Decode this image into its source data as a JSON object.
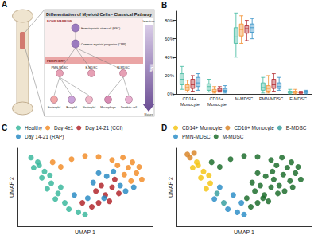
{
  "diagram": {
    "panel_label": "A",
    "title": "Differentiation of Myeloid Cells - Classical Pathway",
    "regions": [
      "BONE MARROW",
      "PERIPHERY"
    ],
    "time": [
      "Immature",
      "TIME",
      "Mature"
    ],
    "progenitors": [
      "Hematopoietic stem cell (HSC)",
      "Common myeloid progenitor (CMP)"
    ],
    "mdsc": [
      "PMN-MDSC",
      "E-MDSC",
      "M-MDSC"
    ],
    "mature": [
      "Eosinophil",
      "Basophil",
      "Neutrophil",
      "Macrophage",
      "Dendritic cell"
    ]
  },
  "chart_data": [
    {
      "type": "boxplot",
      "panel_label": "B",
      "categories": [
        "CD14+ Monocyte",
        "CD16+ Monocyte",
        "M-MDSC",
        "PMN-MDSC",
        "E-MDSC"
      ],
      "ylim": [
        0,
        90
      ],
      "yticks": [
        {
          "value": 0,
          "label": "0%"
        },
        {
          "value": 20,
          "label": "20%"
        },
        {
          "value": 40,
          "label": "40%"
        },
        {
          "value": 60,
          "label": "60%"
        },
        {
          "value": 80,
          "label": "80%"
        }
      ],
      "grid": false,
      "series": [
        {
          "color": "#3cb89d",
          "values": [
            [
              5,
              10,
              16,
              22,
              30
            ],
            [
              2,
              4,
              8,
              11,
              16
            ],
            [
              40,
              55,
              62,
              72,
              88
            ],
            [
              1,
              4,
              7,
              12,
              18
            ],
            [
              0,
              1,
              2,
              3,
              5
            ]
          ]
        },
        {
          "color": "#f28e2b",
          "values": [
            [
              2,
              4,
              7,
              10,
              15
            ],
            [
              1,
              2,
              3,
              5,
              8
            ],
            [
              55,
              63,
              70,
              76,
              85
            ],
            [
              1,
              3,
              6,
              9,
              20
            ],
            [
              0,
              1,
              2,
              3,
              5
            ]
          ]
        },
        {
          "color": "#b2272d",
          "values": [
            [
              3,
              6,
              10,
              16,
              20
            ],
            [
              2,
              3,
              4,
              6,
              8
            ],
            [
              58,
              66,
              71,
              74,
              80
            ],
            [
              3,
              6,
              10,
              16,
              22
            ],
            [
              0,
              1,
              1,
              2,
              3
            ]
          ]
        },
        {
          "color": "#2b8cc4",
          "values": [
            [
              4,
              8,
              12,
              18,
              22
            ],
            [
              1,
              3,
              4,
              6,
              9
            ],
            [
              60,
              67,
              72,
              76,
              82
            ],
            [
              4,
              6,
              8,
              12,
              18
            ],
            [
              0,
              1,
              2,
              3,
              4
            ]
          ]
        }
      ]
    },
    {
      "type": "scatter",
      "panel_label": "C",
      "xlabel": "UMAP 1",
      "ylabel": "UMAP 2",
      "xlim": [
        0,
        10
      ],
      "ylim": [
        0,
        10
      ],
      "tick_labels": false,
      "grid": false,
      "legend": "top",
      "series": [
        {
          "name": "Healthy",
          "color": "#3cb89d",
          "points": [
            [
              1,
              8.8
            ],
            [
              1.5,
              8.2
            ],
            [
              1.2,
              7.5
            ],
            [
              2,
              7
            ],
            [
              1.8,
              6.2
            ],
            [
              2.5,
              5.5
            ],
            [
              2.2,
              4.8
            ],
            [
              3,
              4.2
            ],
            [
              2.8,
              3.5
            ],
            [
              3.5,
              3
            ],
            [
              3.8,
              2.2
            ],
            [
              4.5,
              1.8
            ],
            [
              5,
              1.5
            ],
            [
              1.6,
              7.8
            ],
            [
              2.4,
              6.5
            ],
            [
              3.2,
              5
            ]
          ]
        },
        {
          "name": "Day 4±1",
          "color": "#f28e2b",
          "points": [
            [
              7,
              8.5
            ],
            [
              7.8,
              8.8
            ],
            [
              8.5,
              8.2
            ],
            [
              9,
              7.6
            ],
            [
              8.2,
              7.5
            ],
            [
              7.4,
              7.8
            ],
            [
              8.8,
              6.8
            ],
            [
              7.9,
              6.6
            ],
            [
              9.2,
              6
            ],
            [
              8.4,
              5.8
            ],
            [
              2.6,
              8.2
            ],
            [
              3.2,
              7.6
            ],
            [
              4,
              8.6
            ],
            [
              5,
              9
            ],
            [
              6,
              8.9
            ]
          ]
        },
        {
          "name": "Day 14-21 (CCI)",
          "color": "#b2272d",
          "points": [
            [
              6,
              3
            ],
            [
              6.5,
              4
            ],
            [
              7,
              5
            ],
            [
              5.5,
              2.5
            ],
            [
              6.8,
              3.2
            ],
            [
              7.5,
              4.2
            ],
            [
              6.2,
              5.2
            ],
            [
              7.2,
              6
            ],
            [
              5.8,
              4.5
            ],
            [
              4.8,
              3
            ]
          ]
        },
        {
          "name": "Day 14-21 (RAP)",
          "color": "#2b8cc4",
          "points": [
            [
              6.4,
              3.6
            ],
            [
              7.6,
              5.2
            ],
            [
              8,
              4.5
            ],
            [
              5.2,
              3.6
            ],
            [
              6.6,
              6.4
            ],
            [
              7.1,
              7
            ],
            [
              8.6,
              5
            ],
            [
              5.6,
              5.6
            ],
            [
              4.2,
              4
            ],
            [
              6,
              6.8
            ]
          ]
        }
      ]
    },
    {
      "type": "scatter",
      "panel_label": "D",
      "xlabel": "UMAP 1",
      "ylabel": "UMAP 2",
      "xlim": [
        0,
        10
      ],
      "ylim": [
        0,
        10
      ],
      "tick_labels": false,
      "grid": false,
      "legend": "top",
      "series": [
        {
          "name": "CD14+ Monocyte",
          "color": "#f5c518",
          "points": [
            [
              1.5,
              8.2
            ],
            [
              1.2,
              7.5
            ],
            [
              2,
              7
            ],
            [
              1.8,
              6.2
            ],
            [
              2.5,
              5.5
            ],
            [
              2.2,
              4.8
            ],
            [
              1.6,
              7.8
            ],
            [
              2.4,
              6.5
            ]
          ]
        },
        {
          "name": "CD16+ Monocyte",
          "color": "#d9862a",
          "points": [
            [
              1,
              8.8
            ],
            [
              0.8,
              9.2
            ],
            [
              1.3,
              9.4
            ]
          ]
        },
        {
          "name": "E-MDSC",
          "color": "#3aa0a0",
          "points": [
            [
              3,
              4.2
            ],
            [
              3.5,
              3
            ]
          ]
        },
        {
          "name": "PMN-MDSC",
          "color": "#2f8fc8",
          "points": [
            [
              2.8,
              3.5
            ],
            [
              3.8,
              2.2
            ],
            [
              4.5,
              1.8
            ],
            [
              5,
              1.5
            ],
            [
              3.2,
              5
            ],
            [
              4.8,
              3
            ],
            [
              4.2,
              4
            ]
          ]
        },
        {
          "name": "M-MDSC",
          "color": "#1f6e2e",
          "points": [
            [
              6,
              3
            ],
            [
              6.5,
              4
            ],
            [
              7,
              5
            ],
            [
              5.5,
              2.5
            ],
            [
              6.8,
              3.2
            ],
            [
              7.5,
              4.2
            ],
            [
              6.2,
              5.2
            ],
            [
              7.2,
              6
            ],
            [
              5.8,
              4.5
            ],
            [
              6.4,
              3.6
            ],
            [
              7.6,
              5.2
            ],
            [
              8,
              4.5
            ],
            [
              5.2,
              3.6
            ],
            [
              6.6,
              6.4
            ],
            [
              7.1,
              7
            ],
            [
              8.6,
              5
            ],
            [
              5.6,
              5.6
            ],
            [
              6,
              6.8
            ],
            [
              7,
              8.5
            ],
            [
              7.8,
              8.8
            ],
            [
              8.5,
              8.2
            ],
            [
              9,
              7.6
            ],
            [
              8.2,
              7.5
            ],
            [
              7.4,
              7.8
            ],
            [
              8.8,
              6.8
            ],
            [
              7.9,
              6.6
            ],
            [
              9.2,
              6
            ],
            [
              8.4,
              5.8
            ],
            [
              2.6,
              8.2
            ],
            [
              3.2,
              7.6
            ],
            [
              4,
              8.6
            ],
            [
              5,
              9
            ],
            [
              6,
              8.9
            ]
          ]
        }
      ]
    }
  ]
}
